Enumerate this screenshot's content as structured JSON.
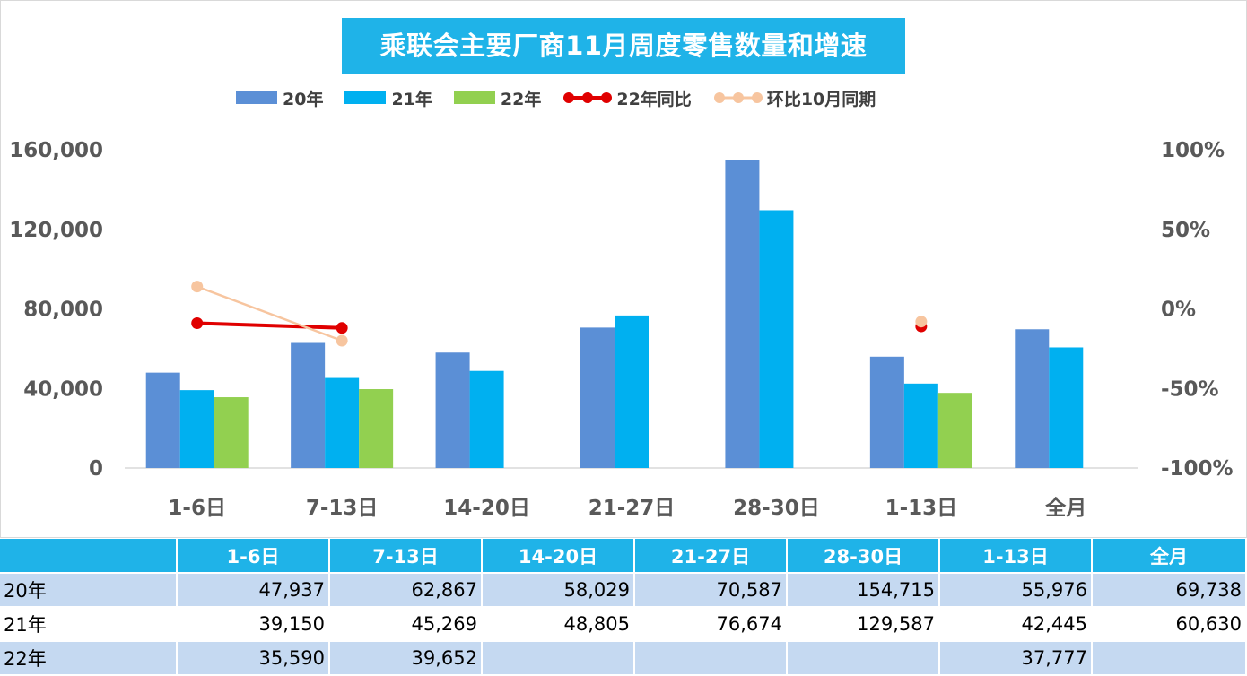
{
  "chart_data": {
    "type": "bar",
    "title": "乘联会主要厂商11月周度零售数量和增速",
    "categories": [
      "1-6日",
      "7-13日",
      "14-20日",
      "21-27日",
      "28-30日",
      "1-13日",
      "全月"
    ],
    "series": [
      {
        "name": "20年",
        "kind": "bar",
        "color": "#5b8fd6",
        "values": [
          47937,
          62867,
          58029,
          70587,
          154715,
          55976,
          69738
        ]
      },
      {
        "name": "21年",
        "kind": "bar",
        "color": "#00b0f0",
        "values": [
          39150,
          45269,
          48805,
          76674,
          129587,
          42445,
          60630
        ]
      },
      {
        "name": "22年",
        "kind": "bar",
        "color": "#92d050",
        "values": [
          35590,
          39652,
          null,
          null,
          null,
          37777,
          null
        ]
      },
      {
        "name": "22年同比",
        "kind": "line",
        "axis": "right",
        "color": "#e00000",
        "values": [
          -0.09,
          -0.12,
          null,
          null,
          null,
          -0.11,
          null
        ]
      },
      {
        "name": "环比10月同期",
        "kind": "line",
        "axis": "right",
        "color": "#f7c59f",
        "values": [
          0.14,
          -0.2,
          null,
          null,
          null,
          -0.08,
          null
        ]
      }
    ],
    "y_left": {
      "min": 0,
      "max": 160000,
      "ticks": [
        "0",
        "40,000",
        "80,000",
        "120,000",
        "160,000"
      ]
    },
    "y_right": {
      "min": -1,
      "max": 1,
      "ticks": [
        "-100%",
        "-50%",
        "0%",
        "50%",
        "100%"
      ]
    },
    "legend_position": "top",
    "grid": false
  },
  "table": {
    "headers": [
      "",
      "1-6日",
      "7-13日",
      "14-20日",
      "21-27日",
      "28-30日",
      "1-13日",
      "全月"
    ],
    "rows": [
      {
        "label": "20年",
        "cells": [
          "47,937",
          "62,867",
          "58,029",
          "70,587",
          "154,715",
          "55,976",
          "69,738"
        ]
      },
      {
        "label": "21年",
        "cells": [
          "39,150",
          "45,269",
          "48,805",
          "76,674",
          "129,587",
          "42,445",
          "60,630"
        ]
      },
      {
        "label": "22年",
        "cells": [
          "35,590",
          "39,652",
          "",
          "",
          "",
          "37,777",
          ""
        ]
      }
    ]
  }
}
